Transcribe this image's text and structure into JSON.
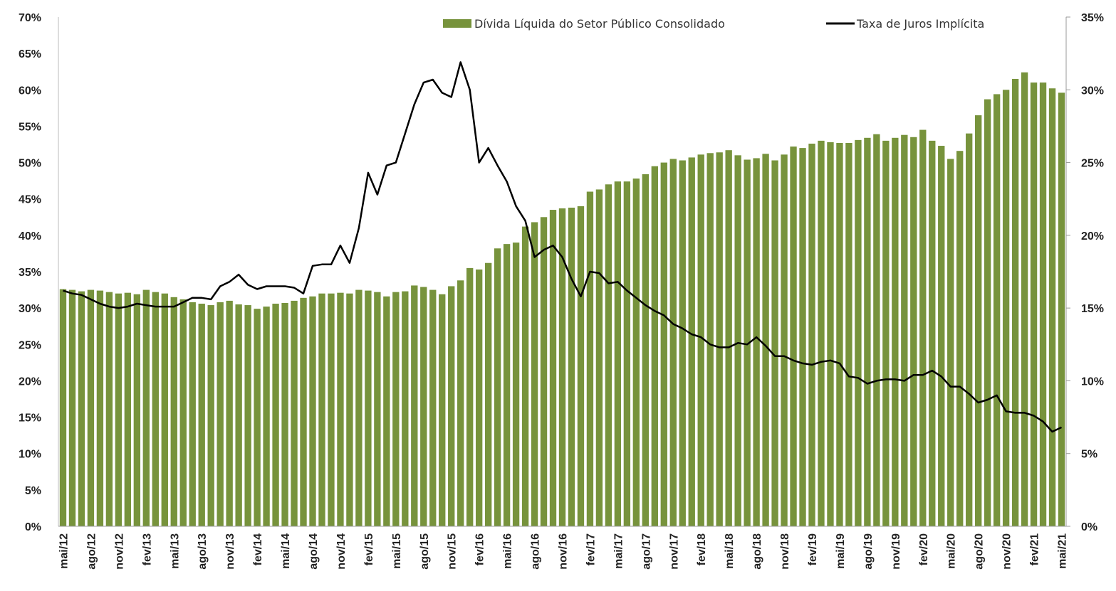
{
  "chart_data": {
    "type": "bar-line",
    "legend_position": "top-right",
    "categories": [
      "mai/12",
      null,
      null,
      "ago/12",
      null,
      null,
      "nov/12",
      null,
      null,
      "fev/13",
      null,
      null,
      "mai/13",
      null,
      null,
      "ago/13",
      null,
      null,
      "nov/13",
      null,
      null,
      "fev/14",
      null,
      null,
      "mai/14",
      null,
      null,
      "ago/14",
      null,
      null,
      "nov/14",
      null,
      null,
      "fev/15",
      null,
      null,
      "mai/15",
      null,
      null,
      "ago/15",
      null,
      null,
      "nov/15",
      null,
      null,
      "fev/16",
      null,
      null,
      "mai/16",
      null,
      null,
      "ago/16",
      null,
      null,
      "nov/16",
      null,
      null,
      "fev/17",
      null,
      null,
      "mai/17",
      null,
      null,
      "ago/17",
      null,
      null,
      "nov/17",
      null,
      null,
      "fev/18",
      null,
      null,
      "mai/18",
      null,
      null,
      "ago/18",
      null,
      null,
      "nov/18",
      null,
      null,
      "fev/19",
      null,
      null,
      "mai/19",
      null,
      null,
      "ago/19",
      null,
      null,
      "nov/19",
      null,
      null,
      "fev/20",
      null,
      null,
      "mai/20",
      null,
      null,
      "ago/20",
      null,
      null,
      "nov/20",
      null,
      null,
      "fev/21",
      null,
      null,
      "mai/21"
    ],
    "series": [
      {
        "name": "Dívida Líquida do Setor Público Consolidado",
        "type": "bar",
        "color": "#77933c",
        "values": [
          32.6,
          32.5,
          32.3,
          32.5,
          32.4,
          32.2,
          32.0,
          32.1,
          31.9,
          32.5,
          32.2,
          32.0,
          31.5,
          31.2,
          30.8,
          30.6,
          30.4,
          30.8,
          31.0,
          30.5,
          30.4,
          29.9,
          30.2,
          30.6,
          30.7,
          31.0,
          31.4,
          31.6,
          32.0,
          32.0,
          32.1,
          32.0,
          32.5,
          32.4,
          32.2,
          31.6,
          32.2,
          32.3,
          33.1,
          32.9,
          32.5,
          31.9,
          33.0,
          33.8,
          35.5,
          35.3,
          36.2,
          38.2,
          38.8,
          39.0,
          41.2,
          41.8,
          42.5,
          43.5,
          43.7,
          43.8,
          44.0,
          46.0,
          46.3,
          47.0,
          47.4,
          47.4,
          47.8,
          48.4,
          49.5,
          50.0,
          50.5,
          50.3,
          50.7,
          51.1,
          51.3,
          51.4,
          51.7,
          51.0,
          50.4,
          50.6,
          51.2,
          50.3,
          51.1,
          52.2,
          52.0,
          52.6,
          53.0,
          52.8,
          52.7,
          52.7,
          53.1,
          53.4,
          53.9,
          53.0,
          53.4,
          53.8,
          53.5,
          54.5,
          53.0,
          52.3,
          50.5,
          51.6,
          54.0,
          56.5,
          58.7,
          59.4,
          60.0,
          61.5,
          62.4,
          61.0,
          61.0,
          60.2,
          59.6
        ]
      },
      {
        "name": "Taxa de Juros Implícita",
        "type": "line",
        "axis": "y2",
        "color": "#000000",
        "values": [
          16.2,
          16.0,
          15.9,
          15.6,
          15.3,
          15.1,
          15.0,
          15.1,
          15.3,
          15.2,
          15.1,
          15.1,
          15.1,
          15.4,
          15.7,
          15.7,
          15.6,
          16.5,
          16.8,
          17.3,
          16.6,
          16.3,
          16.5,
          16.5,
          16.5,
          16.4,
          16.0,
          17.9,
          18.0,
          18.0,
          19.3,
          18.1,
          20.5,
          24.3,
          22.8,
          24.8,
          25.0,
          27.0,
          29.0,
          30.5,
          30.7,
          29.8,
          29.5,
          31.9,
          30.0,
          25.0,
          26.0,
          24.8,
          23.7,
          22.0,
          21.0,
          18.5,
          19.0,
          19.3,
          18.5,
          17.0,
          15.8,
          17.5,
          17.4,
          16.7,
          16.8,
          16.2,
          15.7,
          15.2,
          14.8,
          14.5,
          13.9,
          13.6,
          13.2,
          13.0,
          12.5,
          12.3,
          12.3,
          12.6,
          12.5,
          13.0,
          12.4,
          11.7,
          11.7,
          11.4,
          11.2,
          11.1,
          11.3,
          11.4,
          11.2,
          10.3,
          10.2,
          9.8,
          10.0,
          10.1,
          10.1,
          10.0,
          10.4,
          10.4,
          10.7,
          10.3,
          9.6,
          9.6,
          9.1,
          8.5,
          8.7,
          9.0,
          7.9,
          7.8,
          7.8,
          7.6,
          7.2,
          6.5,
          6.8
        ]
      }
    ],
    "ylim": [
      0,
      70
    ],
    "yticks": [
      {
        "value": 0,
        "label": "0%"
      },
      {
        "value": 5,
        "label": "5%"
      },
      {
        "value": 10,
        "label": "10%"
      },
      {
        "value": 15,
        "label": "15%"
      },
      {
        "value": 20,
        "label": "20%"
      },
      {
        "value": 25,
        "label": "25%"
      },
      {
        "value": 30,
        "label": "30%"
      },
      {
        "value": 35,
        "label": "35%"
      },
      {
        "value": 40,
        "label": "40%"
      },
      {
        "value": 45,
        "label": "45%"
      },
      {
        "value": 50,
        "label": "50%"
      },
      {
        "value": 55,
        "label": "55%"
      },
      {
        "value": 60,
        "label": "60%"
      },
      {
        "value": 65,
        "label": "65%"
      },
      {
        "value": 70,
        "label": "70%"
      }
    ],
    "y2lim": [
      0,
      35
    ],
    "y2ticks": [
      {
        "value": 0,
        "label": "0%"
      },
      {
        "value": 5,
        "label": "5%"
      },
      {
        "value": 10,
        "label": "10%"
      },
      {
        "value": 15,
        "label": "15%"
      },
      {
        "value": 20,
        "label": "20%"
      },
      {
        "value": 25,
        "label": "25%"
      },
      {
        "value": 30,
        "label": "30%"
      },
      {
        "value": 35,
        "label": "35%"
      }
    ]
  }
}
